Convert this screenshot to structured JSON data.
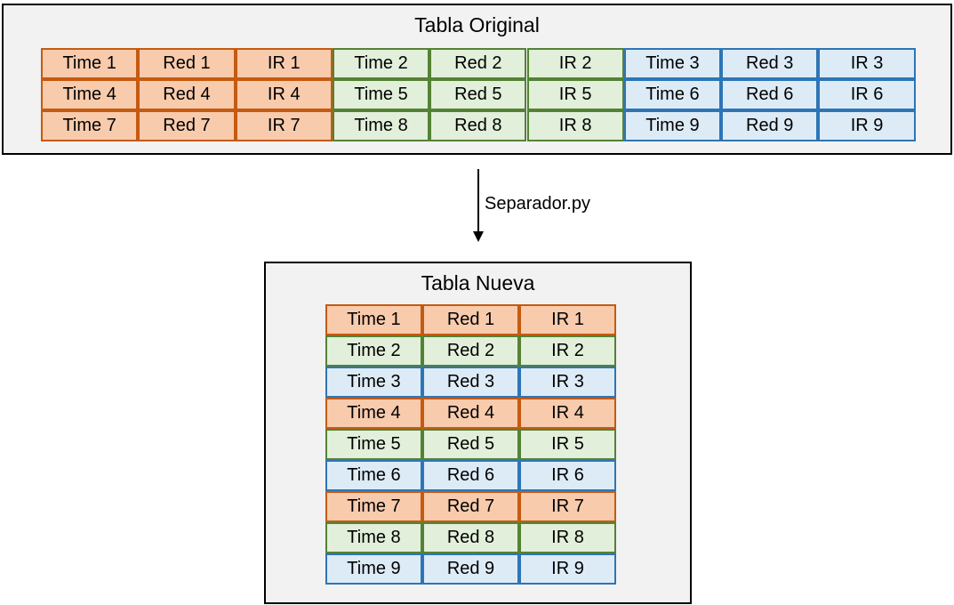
{
  "original": {
    "title": "Tabla Original",
    "rows": [
      [
        {
          "text": "Time 1",
          "color": "orange"
        },
        {
          "text": "Red 1",
          "color": "orange"
        },
        {
          "text": "IR 1",
          "color": "orange"
        },
        {
          "text": "Time 2",
          "color": "green"
        },
        {
          "text": "Red 2",
          "color": "green"
        },
        {
          "text": "IR 2",
          "color": "green"
        },
        {
          "text": "Time 3",
          "color": "blue"
        },
        {
          "text": "Red 3",
          "color": "blue"
        },
        {
          "text": "IR 3",
          "color": "blue"
        }
      ],
      [
        {
          "text": "Time 4",
          "color": "orange"
        },
        {
          "text": "Red 4",
          "color": "orange"
        },
        {
          "text": "IR 4",
          "color": "orange"
        },
        {
          "text": "Time 5",
          "color": "green"
        },
        {
          "text": "Red 5",
          "color": "green"
        },
        {
          "text": "IR 5",
          "color": "green"
        },
        {
          "text": "Time 6",
          "color": "blue"
        },
        {
          "text": "Red 6",
          "color": "blue"
        },
        {
          "text": "IR 6",
          "color": "blue"
        }
      ],
      [
        {
          "text": "Time 7",
          "color": "orange"
        },
        {
          "text": "Red 7",
          "color": "orange"
        },
        {
          "text": "IR 7",
          "color": "orange"
        },
        {
          "text": "Time 8",
          "color": "green"
        },
        {
          "text": "Red 8",
          "color": "green"
        },
        {
          "text": "IR 8",
          "color": "green"
        },
        {
          "text": "Time 9",
          "color": "blue"
        },
        {
          "text": "Red 9",
          "color": "blue"
        },
        {
          "text": "IR 9",
          "color": "blue"
        }
      ]
    ]
  },
  "arrow": {
    "label": "Separador.py"
  },
  "nueva": {
    "title": "Tabla Nueva",
    "rows": [
      [
        {
          "text": "Time 1",
          "color": "orange"
        },
        {
          "text": "Red 1",
          "color": "orange"
        },
        {
          "text": "IR 1",
          "color": "orange"
        }
      ],
      [
        {
          "text": "Time 2",
          "color": "green"
        },
        {
          "text": "Red 2",
          "color": "green"
        },
        {
          "text": "IR 2",
          "color": "green"
        }
      ],
      [
        {
          "text": "Time 3",
          "color": "blue"
        },
        {
          "text": "Red 3",
          "color": "blue"
        },
        {
          "text": "IR 3",
          "color": "blue"
        }
      ],
      [
        {
          "text": "Time 4",
          "color": "orange"
        },
        {
          "text": "Red 4",
          "color": "orange"
        },
        {
          "text": "IR 4",
          "color": "orange"
        }
      ],
      [
        {
          "text": "Time 5",
          "color": "green"
        },
        {
          "text": "Red 5",
          "color": "green"
        },
        {
          "text": "IR 5",
          "color": "green"
        }
      ],
      [
        {
          "text": "Time 6",
          "color": "blue"
        },
        {
          "text": "Red 6",
          "color": "blue"
        },
        {
          "text": "IR 6",
          "color": "blue"
        }
      ],
      [
        {
          "text": "Time 7",
          "color": "orange"
        },
        {
          "text": "Red 7",
          "color": "orange"
        },
        {
          "text": "IR 7",
          "color": "orange"
        }
      ],
      [
        {
          "text": "Time 8",
          "color": "green"
        },
        {
          "text": "Red 8",
          "color": "green"
        },
        {
          "text": "IR 8",
          "color": "green"
        }
      ],
      [
        {
          "text": "Time 9",
          "color": "blue"
        },
        {
          "text": "Red 9",
          "color": "blue"
        },
        {
          "text": "IR 9",
          "color": "blue"
        }
      ]
    ]
  },
  "colors": {
    "orange_fill": "#f8cbad",
    "orange_border": "#c55a11",
    "green_fill": "#e2efda",
    "green_border": "#548235",
    "blue_fill": "#ddebf7",
    "blue_border": "#2e75b6",
    "panel_fill": "#f2f2f2",
    "panel_border": "#000000"
  }
}
